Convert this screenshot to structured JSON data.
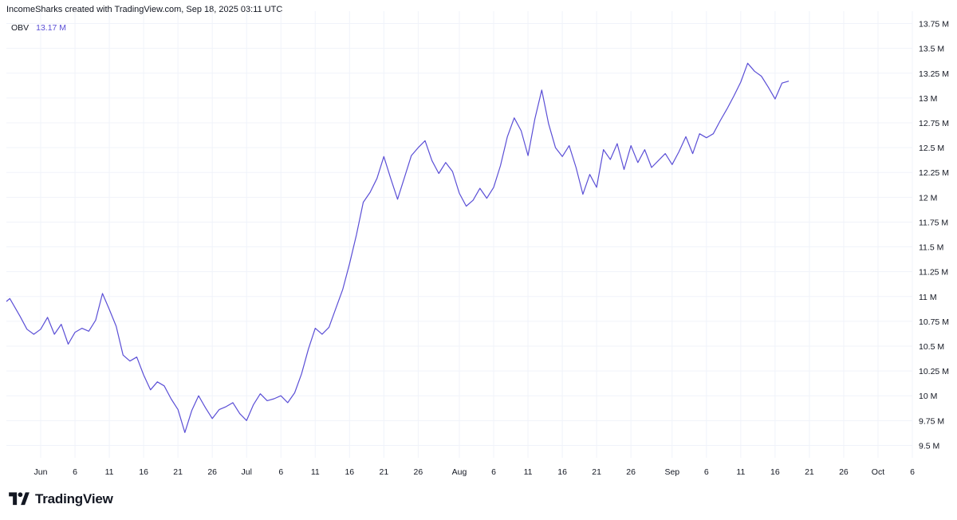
{
  "caption": "IncomeSharks created with TradingView.com, Sep 18, 2025 03:11 UTC",
  "indicator": {
    "name": "OBV",
    "value": "13.17 M"
  },
  "brand": "TradingView",
  "colors": {
    "line": "#5b4fd6",
    "grid": "#f0f3fa",
    "axis_text": "#131722"
  },
  "chart_data": {
    "type": "line",
    "title": "OBV",
    "xlabel": "",
    "ylabel": "",
    "ylim": [
      9.375,
      13.875
    ],
    "y_ticks": [
      9.5,
      9.75,
      10,
      10.25,
      10.5,
      10.75,
      11,
      11.25,
      11.5,
      11.75,
      12,
      12.25,
      12.5,
      12.75,
      13,
      13.25,
      13.5,
      13.75
    ],
    "y_tick_labels": [
      "9.5 M",
      "9.75 M",
      "10 M",
      "10.25 M",
      "10.5 M",
      "10.75 M",
      "11 M",
      "11.25 M",
      "11.5 M",
      "11.75 M",
      "12 M",
      "12.25 M",
      "12.5 M",
      "12.75 M",
      "13 M",
      "13.25 M",
      "13.5 M",
      "13.75 M"
    ],
    "x_start_date": "2025-05-27",
    "xlim_days": [
      0,
      132
    ],
    "x_ticks": [
      {
        "label": "Jun",
        "day": 5
      },
      {
        "label": "6",
        "day": 10
      },
      {
        "label": "11",
        "day": 15
      },
      {
        "label": "16",
        "day": 20
      },
      {
        "label": "21",
        "day": 25
      },
      {
        "label": "26",
        "day": 30
      },
      {
        "label": "Jul",
        "day": 35
      },
      {
        "label": "6",
        "day": 40
      },
      {
        "label": "11",
        "day": 45
      },
      {
        "label": "16",
        "day": 50
      },
      {
        "label": "21",
        "day": 55
      },
      {
        "label": "26",
        "day": 60
      },
      {
        "label": "Aug",
        "day": 66
      },
      {
        "label": "6",
        "day": 71
      },
      {
        "label": "11",
        "day": 76
      },
      {
        "label": "16",
        "day": 81
      },
      {
        "label": "21",
        "day": 86
      },
      {
        "label": "26",
        "day": 91
      },
      {
        "label": "Sep",
        "day": 97
      },
      {
        "label": "6",
        "day": 102
      },
      {
        "label": "11",
        "day": 107
      },
      {
        "label": "16",
        "day": 112
      },
      {
        "label": "21",
        "day": 117
      },
      {
        "label": "26",
        "day": 122
      },
      {
        "label": "Oct",
        "day": 127
      },
      {
        "label": "6",
        "day": 132
      }
    ],
    "series": [
      {
        "name": "OBV",
        "x": [
          0,
          0.5,
          2,
          3,
          4,
          5,
          6,
          7,
          8,
          9,
          10,
          11,
          12,
          13,
          14,
          15,
          16,
          17,
          18,
          19,
          20,
          21,
          22,
          23,
          24,
          25,
          26,
          27,
          28,
          29,
          30,
          31,
          32,
          33,
          34,
          35,
          36,
          37,
          38,
          39,
          40,
          41,
          42,
          43,
          44,
          45,
          46,
          47,
          48,
          49,
          50,
          51,
          52,
          53,
          54,
          55,
          56,
          57,
          58,
          59,
          60,
          61,
          62,
          63,
          64,
          65,
          66,
          67,
          68,
          69,
          70,
          71,
          72,
          73,
          74,
          75,
          76,
          77,
          78,
          79,
          80,
          81,
          82,
          83,
          84,
          85,
          86,
          87,
          88,
          89,
          90,
          91,
          92,
          93,
          94,
          95,
          96,
          97,
          98,
          99,
          100,
          101,
          102,
          103,
          104,
          105,
          106,
          107,
          108,
          109,
          110,
          111,
          112,
          113,
          114
        ],
        "values": [
          10.95,
          10.98,
          10.8,
          10.67,
          10.62,
          10.67,
          10.79,
          10.62,
          10.72,
          10.52,
          10.64,
          10.68,
          10.65,
          10.76,
          11.03,
          10.87,
          10.7,
          10.41,
          10.35,
          10.39,
          10.21,
          10.06,
          10.14,
          10.1,
          9.97,
          9.86,
          9.63,
          9.85,
          10.0,
          9.88,
          9.77,
          9.86,
          9.89,
          9.93,
          9.82,
          9.75,
          9.91,
          10.02,
          9.95,
          9.97,
          10.0,
          9.93,
          10.03,
          10.22,
          10.47,
          10.68,
          10.62,
          10.69,
          10.88,
          11.07,
          11.33,
          11.62,
          11.95,
          12.05,
          12.19,
          12.41,
          12.19,
          11.98,
          12.2,
          12.42,
          12.5,
          12.57,
          12.37,
          12.24,
          12.35,
          12.26,
          12.04,
          11.91,
          11.97,
          12.09,
          11.99,
          12.1,
          12.32,
          12.61,
          12.8,
          12.67,
          12.42,
          12.79,
          13.08,
          12.74,
          12.5,
          12.41,
          12.52,
          12.3,
          12.03,
          12.23,
          12.1,
          12.48,
          12.38,
          12.54,
          12.28,
          12.52,
          12.35,
          12.48,
          12.3,
          12.37,
          12.44,
          12.33,
          12.46,
          12.61,
          12.44,
          12.64,
          12.6,
          12.64,
          12.77,
          12.89,
          13.02,
          13.16,
          13.35,
          13.27,
          13.22,
          13.11,
          12.99,
          13.15,
          13.17
        ]
      }
    ]
  }
}
